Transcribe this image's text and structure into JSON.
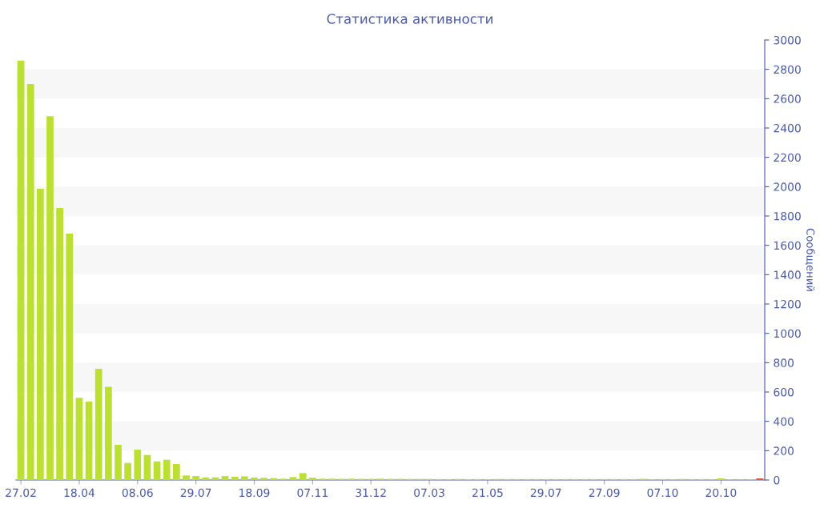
{
  "chart_data": {
    "type": "bar",
    "title": "Статистика активности",
    "y2label": "Сообщений",
    "categories": [
      "27.02",
      null,
      null,
      null,
      null,
      null,
      "18.04",
      null,
      null,
      null,
      null,
      null,
      "08.06",
      null,
      null,
      null,
      null,
      null,
      "29.07",
      null,
      null,
      null,
      null,
      null,
      "18.09",
      null,
      null,
      null,
      null,
      null,
      "07.11",
      null,
      null,
      null,
      null,
      null,
      "31.12",
      null,
      null,
      null,
      null,
      null,
      "07.03",
      null,
      null,
      null,
      null,
      null,
      "21.05",
      null,
      null,
      null,
      null,
      null,
      "29.07",
      null,
      null,
      null,
      null,
      null,
      "27.09",
      null,
      null,
      null,
      null,
      null,
      "07.10",
      null,
      null,
      null,
      null,
      null,
      "20.10",
      null,
      null,
      null,
      null
    ],
    "series": [
      {
        "axis": "y2",
        "values": [
          2860,
          2700,
          1985,
          2480,
          1855,
          1680,
          560,
          535,
          758,
          636,
          240,
          116,
          207,
          171,
          127,
          138,
          109,
          31,
          27,
          18,
          18,
          27,
          22,
          25,
          17,
          15,
          13,
          9,
          20,
          47,
          16,
          9,
          9,
          8,
          9,
          8,
          8,
          9,
          8,
          8,
          7,
          7,
          7,
          6,
          6,
          7,
          6,
          6,
          6,
          7,
          6,
          6,
          6,
          6,
          6,
          6,
          6,
          6,
          6,
          6,
          6,
          6,
          6,
          6,
          8,
          6,
          6,
          6,
          7,
          6,
          6,
          6,
          12,
          5,
          5,
          5,
          11
        ],
        "colors": [
          "#bbe032",
          "#bbe032",
          "#bbe032",
          "#bbe032",
          "#bbe032",
          "#bbe032",
          "#bbe032",
          "#bbe032",
          "#bbe032",
          "#bbe032",
          "#bbe032",
          "#bbe032",
          "#bbe032",
          "#bbe032",
          "#bbe032",
          "#bbe032",
          "#bbe032",
          "#bbe032",
          "#bbe032",
          "#bbe032",
          "#bbe032",
          "#bbe032",
          "#bbe032",
          "#bbe032",
          "#bbe032",
          "#bbe032",
          "#bbe032",
          "#bbe032",
          "#bbe032",
          "#bbe032",
          "#bbe032",
          "#bbe032",
          "#bbe032",
          "#bbe032",
          "#bbe032",
          "#bbe032",
          "#bbe032",
          "#bbe032",
          "#bbe032",
          "#bbe032",
          "#bbe032",
          "#bbe032",
          "#bbe032",
          "#bbe032",
          "#bbe032",
          "#bbe032",
          "#bbe032",
          "#bbe032",
          "#bbe032",
          "#bbe032",
          "#bbe032",
          "#bbe032",
          "#bbe032",
          "#bbe032",
          "#bbe032",
          "#bbe032",
          "#bbe032",
          "#bbe032",
          "#bbe032",
          "#bbe032",
          "#bbe032",
          "#bbe032",
          "#bbe032",
          "#bbe032",
          "#bbe032",
          "#bbe032",
          "#bbe032",
          "#bbe032",
          "#bbe032",
          "#bbe032",
          "#bbe032",
          "#bbe032",
          "#bbe032",
          "#bbe032",
          "#bbe032",
          "#bbe032",
          "#e05a30"
        ]
      }
    ],
    "y2lim": [
      0,
      3000
    ],
    "y2ticks": [
      0,
      200,
      400,
      600,
      800,
      1000,
      1200,
      1400,
      1600,
      1800,
      2000,
      2200,
      2400,
      2600,
      2800,
      3000
    ],
    "bands": [
      {
        "axis": "y2",
        "from": 200,
        "to": 400,
        "color": "#f7f7f7"
      },
      {
        "axis": "y2",
        "from": 600,
        "to": 800,
        "color": "#f7f7f7"
      },
      {
        "axis": "y2",
        "from": 1000,
        "to": 1200,
        "color": "#f7f7f7"
      },
      {
        "axis": "y2",
        "from": 1400,
        "to": 1600,
        "color": "#f7f7f7"
      },
      {
        "axis": "y2",
        "from": 1800,
        "to": 2000,
        "color": "#f7f7f7"
      },
      {
        "axis": "y2",
        "from": 2200,
        "to": 2400,
        "color": "#f7f7f7"
      },
      {
        "axis": "y2",
        "from": 2600,
        "to": 2800,
        "color": "#f7f7f7"
      }
    ],
    "legend": false
  }
}
